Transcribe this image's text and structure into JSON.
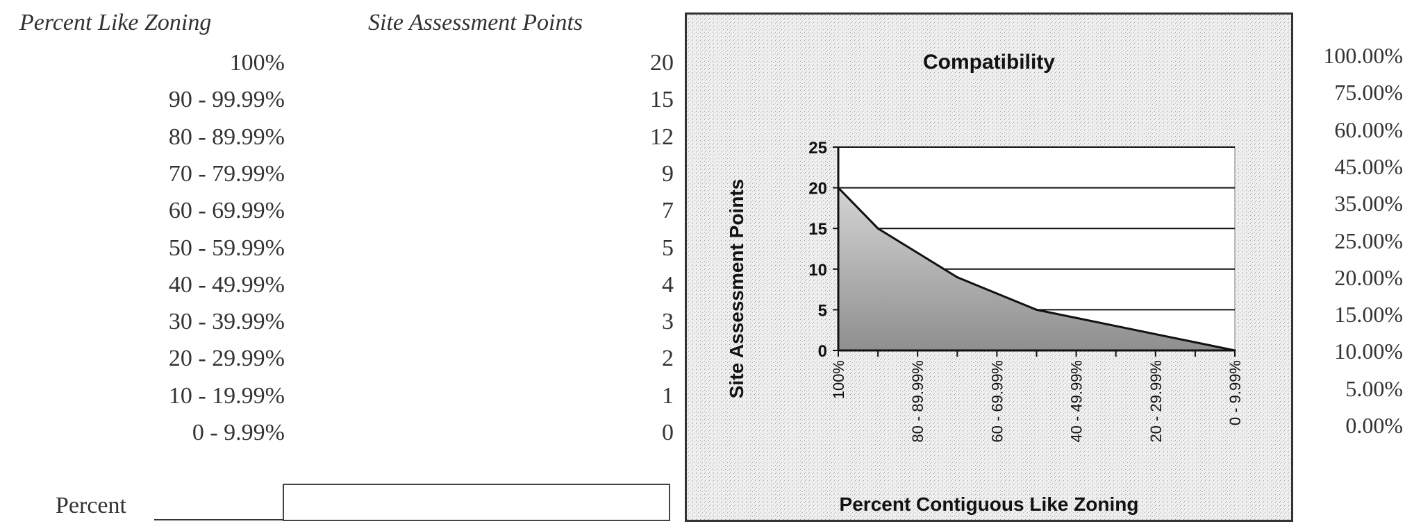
{
  "headers": {
    "percent_like_zoning": "Percent Like Zoning",
    "site_assessment_points": "Site Assessment Points"
  },
  "table": {
    "rows": [
      {
        "range": "100%",
        "points": "20"
      },
      {
        "range": "90 - 99.99%",
        "points": "15"
      },
      {
        "range": "80 - 89.99%",
        "points": "12"
      },
      {
        "range": "70 - 79.99%",
        "points": "9"
      },
      {
        "range": "60 - 69.99%",
        "points": "7"
      },
      {
        "range": "50 - 59.99%",
        "points": "5"
      },
      {
        "range": "40 - 49.99%",
        "points": "4"
      },
      {
        "range": "30 - 39.99%",
        "points": "3"
      },
      {
        "range": "20 - 29.99%",
        "points": "2"
      },
      {
        "range": "10 - 19.99%",
        "points": "1"
      },
      {
        "range": "0 - 9.99%",
        "points": "0"
      }
    ]
  },
  "right_column": [
    "100.00%",
    "75.00%",
    "60.00%",
    "45.00%",
    "35.00%",
    "25.00%",
    "20.00%",
    "15.00%",
    "10.00%",
    "5.00%",
    "0.00%"
  ],
  "percent_field": {
    "label": "Percent",
    "value": ""
  },
  "chart_data": {
    "type": "area",
    "title": "Compatibility",
    "xlabel": "Percent Contiguous Like Zoning",
    "ylabel": "Site Assessment Points",
    "categories": [
      "100%",
      "90 - 99.99%",
      "80 - 89.99%",
      "70 - 79.99%",
      "60 - 69.99%",
      "50 - 59.99%",
      "40 - 49.99%",
      "30 - 39.99%",
      "20 - 29.99%",
      "10 - 19.99%",
      "0 - 9.99%"
    ],
    "shown_tick_labels": [
      "100%",
      "80 - 89.99%",
      "60 - 69.99%",
      "40 - 49.99%",
      "20 - 29.99%",
      "0 - 9.99%"
    ],
    "values": [
      20,
      15,
      12,
      9,
      7,
      5,
      4,
      3,
      2,
      1,
      0
    ],
    "ylim": [
      0,
      25
    ],
    "yticks": [
      0,
      5,
      10,
      15,
      20,
      25
    ],
    "grid": true,
    "legend": "none",
    "colors": {
      "frame_fill": "#e9e9e9",
      "plot_fill": "#ffffff",
      "area_fill": "#a9a9a9",
      "line": "#111111"
    }
  }
}
